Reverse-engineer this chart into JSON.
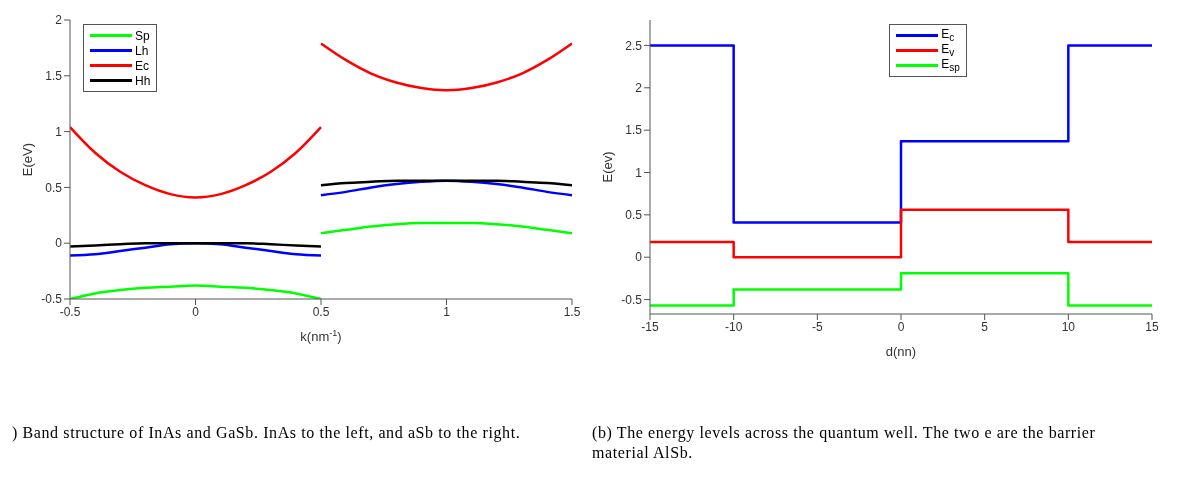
{
  "chart_data": [
    {
      "type": "line",
      "xlabel": "k(nm$^{-1}$)",
      "ylabel": "E(eV)",
      "series": [
        {
          "name": "Sp",
          "color": "#00ff00",
          "x": [
            -0.5,
            -0.4,
            -0.3,
            -0.2,
            -0.1,
            0,
            0.1,
            0.2,
            0.3,
            0.4,
            0.5
          ],
          "values": [
            -0.5,
            -0.45,
            -0.42,
            -0.4,
            -0.39,
            -0.38,
            -0.39,
            -0.4,
            -0.42,
            -0.45,
            -0.5
          ]
        },
        {
          "name": "Lh",
          "color": "#0000ff",
          "x": [
            -0.5,
            -0.4,
            -0.3,
            -0.2,
            -0.1,
            0,
            0.1,
            0.2,
            0.3,
            0.4,
            0.5
          ],
          "values": [
            -0.11,
            -0.1,
            -0.07,
            -0.04,
            -0.01,
            0,
            -0.01,
            -0.04,
            -0.07,
            -0.1,
            -0.11
          ]
        },
        {
          "name": "Ec",
          "color": "#ff0000",
          "x": [
            -0.5,
            -0.4,
            -0.3,
            -0.2,
            -0.1,
            0,
            0.1,
            0.2,
            0.3,
            0.4,
            0.5
          ],
          "values": [
            1.04,
            0.81,
            0.64,
            0.52,
            0.44,
            0.41,
            0.44,
            0.52,
            0.64,
            0.81,
            1.04
          ]
        },
        {
          "name": "Hh",
          "color": "#000000",
          "x": [
            -0.5,
            -0.4,
            -0.3,
            -0.2,
            -0.1,
            0,
            0.1,
            0.2,
            0.3,
            0.4,
            0.5
          ],
          "values": [
            -0.03,
            -0.02,
            -0.01,
            0,
            0,
            0,
            0,
            0,
            -0.01,
            -0.02,
            -0.03
          ]
        },
        {
          "color": "#00ff00",
          "x": [
            0.5,
            0.6,
            0.7,
            0.8,
            0.9,
            1,
            1.1,
            1.2,
            1.3,
            1.4,
            1.5
          ],
          "values": [
            0.09,
            0.12,
            0.15,
            0.17,
            0.18,
            0.18,
            0.18,
            0.17,
            0.15,
            0.12,
            0.09
          ]
        },
        {
          "color": "#0000ff",
          "x": [
            0.5,
            0.6,
            0.7,
            0.8,
            0.9,
            1,
            1.1,
            1.2,
            1.3,
            1.4,
            1.5
          ],
          "values": [
            0.43,
            0.46,
            0.5,
            0.53,
            0.55,
            0.56,
            0.55,
            0.53,
            0.5,
            0.46,
            0.43
          ]
        },
        {
          "color": "#ff0000",
          "x": [
            0.5,
            0.6,
            0.7,
            0.8,
            0.9,
            1,
            1.1,
            1.2,
            1.3,
            1.4,
            1.5
          ],
          "values": [
            1.79,
            1.64,
            1.52,
            1.44,
            1.39,
            1.37,
            1.39,
            1.44,
            1.52,
            1.64,
            1.79
          ]
        },
        {
          "color": "#000000",
          "x": [
            0.5,
            0.6,
            0.7,
            0.8,
            0.9,
            1,
            1.1,
            1.2,
            1.3,
            1.4,
            1.5
          ],
          "values": [
            0.52,
            0.54,
            0.55,
            0.56,
            0.56,
            0.56,
            0.56,
            0.56,
            0.55,
            0.54,
            0.52
          ]
        }
      ],
      "xlim": [
        -0.5,
        1.5
      ],
      "xticks": [
        -0.5,
        0,
        0.5,
        1,
        1.5
      ],
      "ylim": [
        -0.5,
        2
      ],
      "yticks": [
        -0.5,
        0,
        0.5,
        1,
        1.5,
        2
      ],
      "legend": "top left",
      "annotations": [
        ") Band structure of InAs and GaSb. InAs to the left, and aSb to the right."
      ]
    },
    {
      "type": "step",
      "xlabel": "d(nn)",
      "ylabel": "E(ev)",
      "x": [
        -15,
        -10,
        0,
        10,
        15
      ],
      "series": [
        {
          "name": "E$_{c}$",
          "color": "#0000ff",
          "values": [
            2.5,
            0.41,
            1.37,
            2.5,
            2.5
          ]
        },
        {
          "name": "E$_{v}$",
          "color": "#ff0000",
          "values": [
            0.18,
            0,
            0.56,
            0.18,
            0.18
          ]
        },
        {
          "name": "E$_{sp}$",
          "color": "#00ff00",
          "values": [
            -0.57,
            -0.38,
            -0.19,
            -0.57,
            -0.57
          ]
        }
      ],
      "xlim": [
        -15,
        15
      ],
      "xticks": [
        -15,
        -10,
        -5,
        0,
        5,
        10,
        15
      ],
      "ylim": [
        -0.67,
        2.8
      ],
      "yticks": [
        -0.5,
        0,
        0.5,
        1,
        1.5,
        2,
        2.5
      ],
      "legend": "top",
      "annotations": [
        "(b) The energy levels across the quantum well. The two e are the barrier material AlSb."
      ]
    }
  ]
}
